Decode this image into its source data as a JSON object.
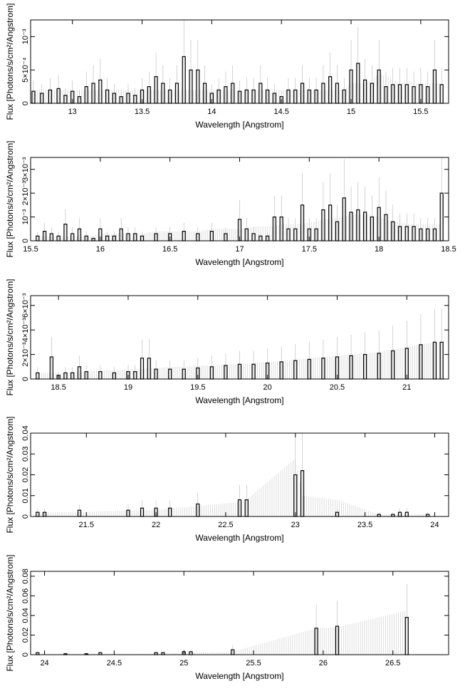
{
  "chart_data": [
    {
      "type": "line",
      "xlabel": "Wavelength [Angstrom]",
      "ylabel": "Flux [Photons/s/cm²/Angstrom]",
      "xlim": [
        12.7,
        15.7
      ],
      "ylim": [
        0,
        0.00125
      ],
      "x_ticks": [
        13,
        13.5,
        14,
        14.5,
        15,
        15.5
      ],
      "x_tick_labels": [
        "13",
        "13.5",
        "14",
        "14.5",
        "15",
        "15.5"
      ],
      "y_ticks": [
        0,
        0.0005,
        0.001
      ],
      "y_tick_labels": [
        "0",
        "5×10⁻⁴",
        "10⁻³"
      ],
      "series": [
        {
          "x": [
            12.72,
            12.78,
            12.84,
            12.9,
            12.95,
            13.0,
            13.05,
            13.1,
            13.15,
            13.2,
            13.25,
            13.3,
            13.35,
            13.4,
            13.45,
            13.5,
            13.55,
            13.6,
            13.65,
            13.7,
            13.75,
            13.8,
            13.85,
            13.9,
            13.95,
            14.0,
            14.05,
            14.1,
            14.15,
            14.2,
            14.25,
            14.3,
            14.35,
            14.4,
            14.45,
            14.5,
            14.55,
            14.6,
            14.65,
            14.7,
            14.75,
            14.8,
            14.85,
            14.9,
            14.95,
            15.0,
            15.05,
            15.1,
            15.15,
            15.2,
            15.25,
            15.3,
            15.35,
            15.4,
            15.45,
            15.5,
            15.55,
            15.6,
            15.65
          ],
          "values": [
            0.00018,
            0.00015,
            0.0002,
            0.00022,
            0.00012,
            0.00018,
            0.0001,
            0.00025,
            0.0003,
            0.00035,
            0.0002,
            0.00015,
            0.0001,
            0.00015,
            0.00012,
            0.0002,
            0.00025,
            0.0004,
            0.0003,
            0.0002,
            0.0003,
            0.0007,
            0.0005,
            0.0005,
            0.0003,
            0.00015,
            0.0002,
            0.00025,
            0.0003,
            0.00018,
            0.0002,
            0.0002,
            0.0003,
            0.0002,
            0.00015,
            0.0001,
            0.0002,
            0.0002,
            0.0003,
            0.0002,
            0.0002,
            0.0003,
            0.0004,
            0.0003,
            0.0002,
            0.0005,
            0.0006,
            0.00035,
            0.0003,
            0.0005,
            0.00025,
            0.00028,
            0.00028,
            0.00028,
            0.00025,
            0.00028,
            0.00025,
            0.0005,
            0.00028
          ],
          "model": [
            0.0002,
            0.0002,
            0.0002,
            0.0002,
            0.0002,
            0.0002,
            0.0002,
            0.0002,
            0.0002,
            0.0002,
            0.0002,
            0.0002,
            0.0002,
            0.0002,
            0.0002,
            0.0002,
            0.0002,
            0.0002,
            0.0002,
            0.0002,
            0.0002,
            0.0002,
            0.0002,
            0.0002,
            0.0002,
            0.0002,
            0.0002,
            0.0002,
            0.0002,
            0.0002,
            0.0002,
            0.0002,
            0.0002,
            0.0002,
            0.0002,
            0.0002,
            0.0002,
            0.0002,
            0.0002,
            0.0002,
            0.0002,
            0.0002,
            0.0002,
            0.0002,
            0.0002,
            0.0003,
            0.0003,
            0.0003,
            0.00035,
            0.00045,
            0.0004,
            0.00035,
            0.0003,
            0.00035,
            0.0003,
            0.0003,
            0.0003,
            0.0003,
            0.0003
          ]
        }
      ]
    },
    {
      "type": "line",
      "xlabel": "Wavelength [Angstrom]",
      "ylabel": "Flux [Photons/s/cm²/Angstrom]",
      "xlim": [
        15.5,
        18.5
      ],
      "ylim": [
        0,
        0.0035
      ],
      "x_ticks": [
        15.5,
        16,
        16.5,
        17,
        17.5,
        18,
        18.5
      ],
      "x_tick_labels": [
        "15.5",
        "16",
        "16.5",
        "17",
        "17.5",
        "18",
        "18.5"
      ],
      "y_ticks": [
        0,
        0.001,
        0.002,
        0.003
      ],
      "y_tick_labels": [
        "0",
        "10⁻³",
        "2×10⁻³",
        "3×10⁻³"
      ],
      "series": [
        {
          "x": [
            15.55,
            15.6,
            15.65,
            15.7,
            15.75,
            15.8,
            15.85,
            15.9,
            15.95,
            16.0,
            16.05,
            16.1,
            16.15,
            16.2,
            16.25,
            16.3,
            16.4,
            16.5,
            16.6,
            16.7,
            16.8,
            16.9,
            17.0,
            17.05,
            17.1,
            17.15,
            17.2,
            17.25,
            17.3,
            17.35,
            17.4,
            17.45,
            17.5,
            17.55,
            17.6,
            17.65,
            17.7,
            17.75,
            17.8,
            17.85,
            17.9,
            17.95,
            18.0,
            18.05,
            18.1,
            18.15,
            18.2,
            18.25,
            18.3,
            18.35,
            18.4,
            18.45
          ],
          "values": [
            0.0002,
            0.0004,
            0.0003,
            0.0002,
            0.0007,
            0.0003,
            0.0005,
            0.0002,
            0.0001,
            0.0005,
            0.0002,
            0.0002,
            0.0005,
            0.0003,
            0.0003,
            0.0002,
            0.0003,
            0.0003,
            0.0004,
            0.0003,
            0.0004,
            0.0003,
            0.0009,
            0.0005,
            0.0003,
            0.0002,
            0.0002,
            0.001,
            0.001,
            0.0005,
            0.0005,
            0.0015,
            0.0005,
            0.0005,
            0.0013,
            0.0015,
            0.0008,
            0.0018,
            0.0012,
            0.0013,
            0.0012,
            0.001,
            0.0014,
            0.0011,
            0.0008,
            0.0006,
            0.0006,
            0.0006,
            0.0005,
            0.0005,
            0.0005,
            0.002
          ],
          "model": [
            0.0002,
            0.0002,
            0.0002,
            0.0002,
            0.0002,
            0.0002,
            0.0002,
            0.0002,
            0.0002,
            0.0003,
            0.0003,
            0.0003,
            0.0003,
            0.0003,
            0.0003,
            0.0003,
            0.0004,
            0.0004,
            0.0004,
            0.0004,
            0.0005,
            0.0005,
            0.0005,
            0.0005,
            0.0006,
            0.0006,
            0.0006,
            0.0006,
            0.0007,
            0.0007,
            0.0007,
            0.0007,
            0.0008,
            0.0008,
            0.0009,
            0.0009,
            0.001,
            0.001,
            0.0011,
            0.0011,
            0.0011,
            0.0011,
            0.001,
            0.0009,
            0.0008,
            0.0008,
            0.0007,
            0.0007,
            0.0007,
            0.0007,
            0.0007,
            0.0007
          ]
        }
      ]
    },
    {
      "type": "line",
      "xlabel": "Wavelength [Angstrom]",
      "ylabel": "Flux [Photons/s/cm²/Angstrom]",
      "xlim": [
        18.3,
        21.3
      ],
      "ylim": [
        0,
        0.0068
      ],
      "x_ticks": [
        18.5,
        19,
        19.5,
        20,
        20.5,
        21
      ],
      "x_tick_labels": [
        "18.5",
        "19",
        "19.5",
        "20",
        "20.5",
        "21"
      ],
      "y_ticks": [
        0,
        0.002,
        0.004,
        0.006
      ],
      "y_tick_labels": [
        "0",
        "2×10⁻³",
        "4×10⁻³",
        "6×10⁻³"
      ],
      "series": [
        {
          "x": [
            18.35,
            18.45,
            18.5,
            18.55,
            18.6,
            18.65,
            18.7,
            18.8,
            18.9,
            19.0,
            19.05,
            19.1,
            19.15,
            19.2,
            19.3,
            19.4,
            19.5,
            19.6,
            19.7,
            19.8,
            19.9,
            20.0,
            20.1,
            20.2,
            20.3,
            20.4,
            20.5,
            20.6,
            20.7,
            20.8,
            20.9,
            21.0,
            21.1,
            21.2,
            21.25
          ],
          "values": [
            0.0005,
            0.0018,
            0.0003,
            0.0005,
            0.0005,
            0.001,
            0.0006,
            0.0006,
            0.0005,
            0.0006,
            0.0006,
            0.0017,
            0.0017,
            0.0008,
            0.0008,
            0.0008,
            0.0009,
            0.001,
            0.0011,
            0.0012,
            0.0012,
            0.0013,
            0.0014,
            0.0015,
            0.0016,
            0.0017,
            0.0018,
            0.0019,
            0.002,
            0.0021,
            0.0023,
            0.0025,
            0.0028,
            0.003,
            0.003
          ],
          "model": [
            0.0005,
            0.0005,
            0.0005,
            0.0005,
            0.0006,
            0.0006,
            0.0006,
            0.0007,
            0.0007,
            0.0008,
            0.0008,
            0.0008,
            0.0009,
            0.0009,
            0.001,
            0.001,
            0.0011,
            0.0011,
            0.0012,
            0.0012,
            0.0013,
            0.0014,
            0.0015,
            0.0016,
            0.0017,
            0.0018,
            0.0019,
            0.002,
            0.0021,
            0.0022,
            0.0024,
            0.0026,
            0.0028,
            0.003,
            0.003
          ]
        }
      ]
    },
    {
      "type": "line",
      "xlabel": "Wavelength [Angstrom]",
      "ylabel": "Flux [Photons/s/cm²/Angstrom]",
      "xlim": [
        21.1,
        24.1
      ],
      "ylim": [
        0,
        0.04
      ],
      "x_ticks": [
        21.5,
        22,
        22.5,
        23,
        23.5,
        24
      ],
      "x_tick_labels": [
        "21.5",
        "22",
        "22.5",
        "23",
        "23.5",
        "24"
      ],
      "y_ticks": [
        0,
        0.01,
        0.02,
        0.03,
        0.04
      ],
      "y_tick_labels": [
        "0",
        "0.01",
        "0.02",
        "0.03",
        "0.04"
      ],
      "series": [
        {
          "x": [
            21.15,
            21.2,
            21.45,
            21.8,
            21.9,
            22.0,
            22.1,
            22.3,
            22.6,
            22.65,
            23.0,
            23.05,
            23.3,
            23.6,
            23.7,
            23.75,
            23.8,
            23.95
          ],
          "values": [
            0.002,
            0.002,
            0.003,
            0.003,
            0.004,
            0.004,
            0.004,
            0.006,
            0.008,
            0.008,
            0.02,
            0.022,
            0.002,
            0.001,
            0.001,
            0.002,
            0.002,
            0.001
          ],
          "model": [
            0.002,
            0.002,
            0.002,
            0.003,
            0.003,
            0.003,
            0.004,
            0.005,
            0.007,
            0.008,
            0.028,
            0.01,
            0.008,
            0.001,
            0.001,
            0.001,
            0.001,
            0.001
          ]
        }
      ]
    },
    {
      "type": "line",
      "xlabel": "Wavelength [Angstrom]",
      "ylabel": "Flux [Photons/s/cm²/Angstrom]",
      "xlim": [
        23.9,
        26.9
      ],
      "ylim": [
        0,
        0.085
      ],
      "x_ticks": [
        24,
        24.5,
        25,
        25.5,
        26,
        26.5
      ],
      "x_tick_labels": [
        "24",
        "24.5",
        "25",
        "25.5",
        "26",
        "26.5"
      ],
      "y_ticks": [
        0,
        0.02,
        0.04,
        0.06,
        0.08
      ],
      "y_tick_labels": [
        "0",
        "0.02",
        "0.04",
        "0.06",
        "0.08"
      ],
      "series": [
        {
          "x": [
            23.95,
            24.15,
            24.3,
            24.4,
            24.8,
            24.85,
            25.0,
            25.05,
            25.35,
            25.95,
            26.1,
            26.6
          ],
          "values": [
            0.002,
            0.001,
            0.001,
            0.002,
            0.002,
            0.002,
            0.003,
            0.003,
            0.005,
            0.027,
            0.029,
            0.038
          ],
          "model": [
            0.001,
            0.001,
            0.001,
            0.001,
            0.001,
            0.001,
            0.002,
            0.002,
            0.003,
            0.027,
            0.028,
            0.045
          ]
        }
      ]
    }
  ]
}
